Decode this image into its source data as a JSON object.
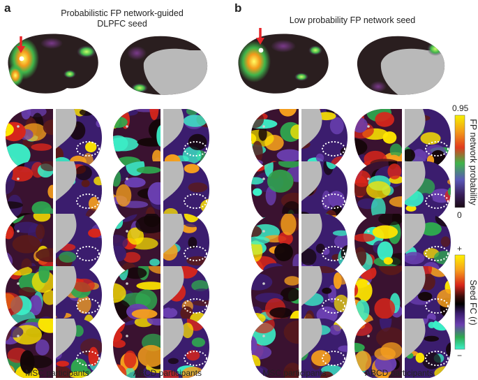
{
  "panels": {
    "a": {
      "letter": "a",
      "title_line1": "Probabilistic FP network-guided",
      "title_line2": "DLPFC seed",
      "footer_left": "MSC participants",
      "footer_right": "ABCD participants"
    },
    "b": {
      "letter": "b",
      "title_line1": "Low probability FP network seed",
      "footer_left": "MSC participants",
      "footer_right": "ABCD participants"
    }
  },
  "colorbars": {
    "probability": {
      "label": "FP network probability",
      "max": "0.95",
      "min": "0",
      "colors": [
        "#f6f000",
        "#f39a1a",
        "#e13b1e",
        "#3fb44a",
        "#5a58b8",
        "#3a1f5c",
        "#1a0a14"
      ]
    },
    "fc": {
      "label": "Seed FC (r)",
      "max": "+",
      "min": "−",
      "colors": [
        "#fff200",
        "#f7a01d",
        "#d8261b",
        "#3a0c0c",
        "#000000",
        "#3b1d6e",
        "#6a3fb0",
        "#2fa84f",
        "#3cf0c8"
      ]
    }
  },
  "marker_color": "#e8262a",
  "brain_dark": "#2a1e1f",
  "medial_wall": "#b9b9b9"
}
